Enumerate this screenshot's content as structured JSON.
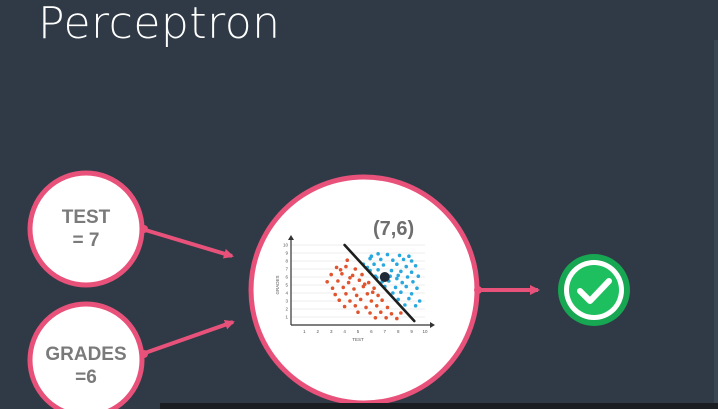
{
  "title": "Perceptron",
  "inputs": [
    {
      "line1": "TEST",
      "line2": "= 7"
    },
    {
      "line1": "GRADES",
      "line2": "=6"
    }
  ],
  "point_label": "(7,6)",
  "icon": "checkmark-icon",
  "colors": {
    "background": "#2f3a46",
    "ring": "#e8527a",
    "blue_points": "#29a8df",
    "red_points": "#e0552f",
    "check_green": "#1dbf5e"
  },
  "chart_data": {
    "type": "scatter",
    "xlabel": "TEST",
    "ylabel": "GRADES",
    "xlim": [
      0,
      10
    ],
    "ylim": [
      0,
      10
    ],
    "xticks": [
      1,
      2,
      3,
      4,
      5,
      6,
      7,
      8,
      9,
      10
    ],
    "yticks": [
      1,
      2,
      3,
      4,
      5,
      6,
      7,
      8,
      9,
      10
    ],
    "boundary": {
      "x1": 4.0,
      "y1": 10.0,
      "x2": 9.2,
      "y2": 0.5
    },
    "highlight_point": {
      "x": 7,
      "y": 6
    },
    "series": [
      {
        "color": "#29a8df",
        "points": [
          [
            6.5,
            8.9
          ],
          [
            7.2,
            8.8
          ],
          [
            8.1,
            8.7
          ],
          [
            5.9,
            8.3
          ],
          [
            6.7,
            8.2
          ],
          [
            7.6,
            8.1
          ],
          [
            8.4,
            8.2
          ],
          [
            9.0,
            8.0
          ],
          [
            5.4,
            7.6
          ],
          [
            6.2,
            7.6
          ],
          [
            6.9,
            7.5
          ],
          [
            7.9,
            7.6
          ],
          [
            8.6,
            7.3
          ],
          [
            9.3,
            7.4
          ],
          [
            5.9,
            6.8
          ],
          [
            6.5,
            6.9
          ],
          [
            7.5,
            6.8
          ],
          [
            8.2,
            6.7
          ],
          [
            9.0,
            6.6
          ],
          [
            6.3,
            6.1
          ],
          [
            7.4,
            6.1
          ],
          [
            8.0,
            6.2
          ],
          [
            8.7,
            6.0
          ],
          [
            9.5,
            6.1
          ],
          [
            6.8,
            5.4
          ],
          [
            7.3,
            5.5
          ],
          [
            8.3,
            5.3
          ],
          [
            9.1,
            5.4
          ],
          [
            7.0,
            4.8
          ],
          [
            7.8,
            4.7
          ],
          [
            8.6,
            4.8
          ],
          [
            9.4,
            4.6
          ],
          [
            7.6,
            4.0
          ],
          [
            8.2,
            4.1
          ],
          [
            9.0,
            3.9
          ],
          [
            8.0,
            3.2
          ],
          [
            8.8,
            3.3
          ],
          [
            9.6,
            3.0
          ],
          [
            8.5,
            2.5
          ],
          [
            9.3,
            2.4
          ],
          [
            6.4,
            5.9
          ],
          [
            7.9,
            5.8
          ],
          [
            5.7,
            7.2
          ],
          [
            6.0,
            8.6
          ],
          [
            8.8,
            8.6
          ]
        ]
      },
      {
        "color": "#e0552f",
        "points": [
          [
            4.2,
            8.1
          ],
          [
            3.4,
            7.2
          ],
          [
            4.1,
            7.3
          ],
          [
            4.8,
            7.0
          ],
          [
            3.0,
            6.3
          ],
          [
            3.8,
            6.4
          ],
          [
            4.6,
            6.2
          ],
          [
            5.3,
            6.3
          ],
          [
            2.7,
            5.4
          ],
          [
            3.5,
            5.5
          ],
          [
            4.3,
            5.3
          ],
          [
            5.1,
            5.6
          ],
          [
            5.8,
            5.3
          ],
          [
            3.1,
            4.6
          ],
          [
            3.9,
            4.7
          ],
          [
            4.7,
            4.5
          ],
          [
            5.4,
            4.8
          ],
          [
            6.2,
            4.6
          ],
          [
            3.3,
            3.8
          ],
          [
            4.1,
            3.9
          ],
          [
            4.9,
            3.7
          ],
          [
            5.7,
            3.9
          ],
          [
            6.5,
            3.7
          ],
          [
            3.6,
            3.1
          ],
          [
            4.4,
            3.0
          ],
          [
            5.2,
            3.2
          ],
          [
            6.0,
            3.0
          ],
          [
            6.8,
            3.1
          ],
          [
            4.0,
            2.3
          ],
          [
            4.8,
            2.4
          ],
          [
            5.6,
            2.2
          ],
          [
            6.4,
            2.4
          ],
          [
            7.2,
            2.2
          ],
          [
            5.0,
            1.6
          ],
          [
            5.9,
            1.5
          ],
          [
            6.7,
            1.6
          ],
          [
            7.5,
            1.4
          ],
          [
            8.2,
            1.5
          ],
          [
            6.3,
            0.9
          ],
          [
            7.1,
            0.9
          ],
          [
            7.9,
            0.8
          ],
          [
            4.4,
            5.9
          ],
          [
            5.5,
            5.1
          ],
          [
            6.1,
            4.1
          ],
          [
            3.7,
            6.9
          ]
        ]
      }
    ]
  }
}
